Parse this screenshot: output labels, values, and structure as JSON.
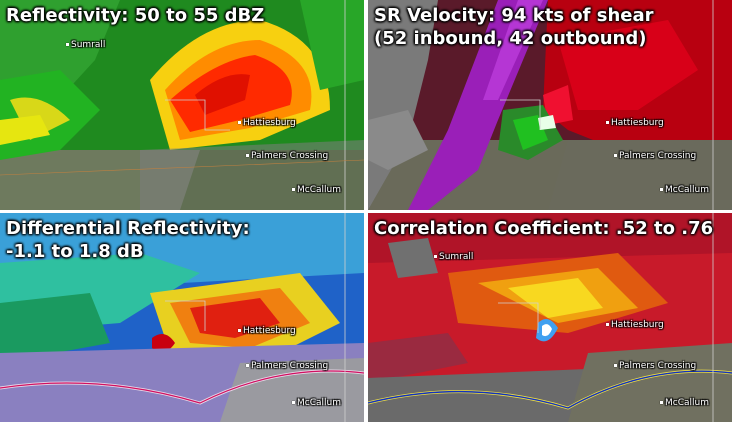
{
  "panels": [
    {
      "title": "Reflectivity: 50 to 55 dBZ"
    },
    {
      "title": "SR Velocity: 94 kts of shear\n(52 inbound, 42 outbound)"
    },
    {
      "title": "Differential Reflectivity:\n-1.1 to 1.8 dB"
    },
    {
      "title": "Correlation Coefficient: .52 to .76"
    }
  ],
  "cities": {
    "sumrall": "Sumrall",
    "hattiesburg": "Hattiesburg",
    "palmers_crossing": "Palmers Crossing",
    "mccallum": "McCallum"
  },
  "colors": {
    "reflectivity_core": "#ff2a00",
    "velocity_inbound": "#9a1fb8",
    "velocity_outbound": "#b80010",
    "zdr_background": "#1f62c8",
    "cc_background": "#c81a2a"
  }
}
